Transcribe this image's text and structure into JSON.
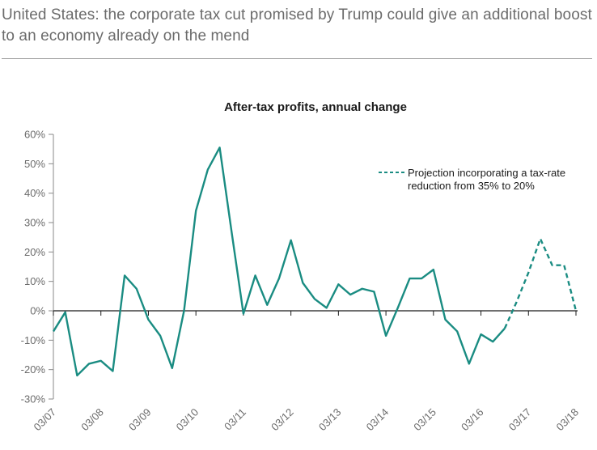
{
  "header": {
    "title": "United States: the corporate tax cut promised by Trump could give an additional boost to an economy already on the mend"
  },
  "chart_data": {
    "type": "line",
    "title": "After-tax profits, annual change",
    "xlabel": "",
    "ylabel": "",
    "ylim": [
      -30,
      60
    ],
    "yticks": [
      -30,
      -20,
      -10,
      0,
      10,
      20,
      30,
      40,
      50,
      60
    ],
    "ytick_labels": [
      "-30%",
      "-20%",
      "-10%",
      "0%",
      "10%",
      "20%",
      "30%",
      "40%",
      "50%",
      "60%"
    ],
    "x_unit": "quarters",
    "x_tick_labels": [
      "03/07",
      "03/08",
      "03/09",
      "03/10",
      "03/11",
      "03/12",
      "03/13",
      "03/14",
      "03/15",
      "03/16",
      "03/17",
      "03/18"
    ],
    "grid": false,
    "legend_position": "top-right",
    "series": [
      {
        "name": "",
        "style": "solid",
        "color": "#1a8c82",
        "points": [
          [
            0,
            -7
          ],
          [
            1,
            -0.5
          ],
          [
            2,
            -22
          ],
          [
            3,
            -18
          ],
          [
            4,
            -17
          ],
          [
            5,
            -20.5
          ],
          [
            6,
            12
          ],
          [
            7,
            7.5
          ],
          [
            8,
            -3
          ],
          [
            9,
            -8.5
          ],
          [
            10,
            -19.5
          ],
          [
            11,
            0
          ],
          [
            12,
            34
          ],
          [
            13,
            48
          ],
          [
            14,
            55.5
          ],
          [
            15,
            27
          ],
          [
            16,
            -1
          ],
          [
            17,
            12
          ],
          [
            18,
            2
          ],
          [
            19,
            11
          ],
          [
            20,
            24
          ],
          [
            21,
            9.5
          ],
          [
            22,
            4
          ],
          [
            23,
            1
          ],
          [
            24,
            9
          ],
          [
            25,
            5.5
          ],
          [
            26,
            7.5
          ],
          [
            27,
            6.5
          ],
          [
            28,
            -8.5
          ],
          [
            29,
            1
          ],
          [
            30,
            11
          ],
          [
            31,
            11
          ],
          [
            32,
            14
          ],
          [
            33,
            -3
          ],
          [
            34,
            -7
          ],
          [
            35,
            -18
          ],
          [
            36,
            -8
          ],
          [
            37,
            -10.5
          ],
          [
            38,
            -6
          ]
        ]
      },
      {
        "name": "Projection incorporating a tax-rate reduction from 35% to 20%",
        "style": "dashed",
        "color": "#1a8c82",
        "points": [
          [
            38,
            -6
          ],
          [
            39,
            3
          ],
          [
            40,
            13
          ],
          [
            41,
            24.5
          ],
          [
            42,
            15.5
          ],
          [
            43,
            15.5
          ],
          [
            44,
            0
          ]
        ]
      }
    ]
  },
  "legend": {
    "line1": "Projection incorporating a tax-rate",
    "line2": "reduction from 35% to 20%"
  }
}
